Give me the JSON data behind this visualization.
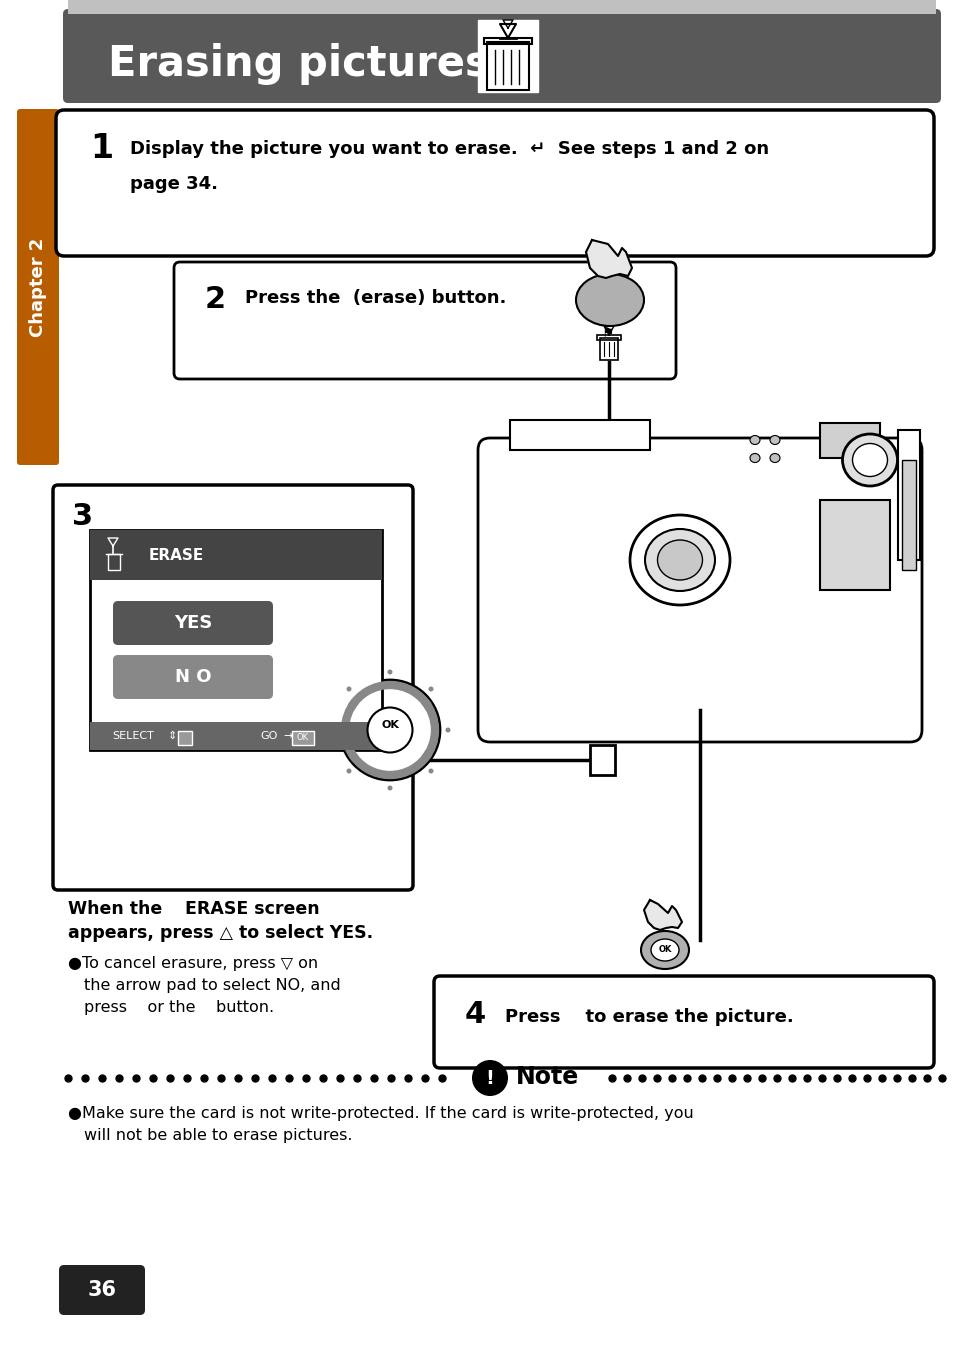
{
  "bg_color": "#ffffff",
  "header_bg": "#595959",
  "header_text": "Erasing pictures",
  "header_text_color": "#ffffff",
  "chapter_bg": "#b85c00",
  "chapter_text": "Chapter 2",
  "step1_line1": "Display the picture you want to erase.  ↵  See steps 1 and 2 on",
  "step1_line2": "page 34.",
  "step2_text": "Press the  (erase) button.",
  "erase_header": "ERASE",
  "yes_label": "YES",
  "no_label": "N O",
  "select_label": "SELECT",
  "go_label": "GO",
  "when_line1": "When the    ERASE screen",
  "when_line2": "appears, press △ to select YES.",
  "bullet1_line1": "●To cancel erasure, press ▽ on",
  "bullet1_line2": "the arrow pad to select NO, and",
  "bullet1_line3": "press    or the    button.",
  "step4_text": "Press    to erase the picture.",
  "note_label": "Note",
  "note_bullet": "●Make sure the card is not write-protected. If the card is write-protected, you",
  "note_bullet2": "will not be able to erase pictures.",
  "page_num": "36",
  "gray_light": "#d0d0d0",
  "gray_mid": "#888888",
  "gray_dark": "#444444",
  "black": "#000000",
  "white": "#ffffff"
}
